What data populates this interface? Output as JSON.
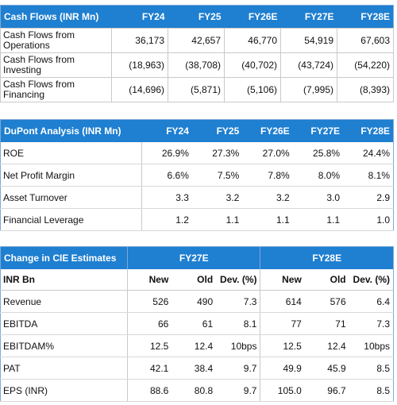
{
  "cash_flows": {
    "title": "Cash Flows (INR Mn)",
    "columns": [
      "FY24",
      "FY25",
      "FY26E",
      "FY27E",
      "FY28E"
    ],
    "rows": [
      {
        "label": "Cash Flows from Operations",
        "values": [
          "36,173",
          "42,657",
          "46,770",
          "54,919",
          "67,603"
        ]
      },
      {
        "label": "Cash Flows from Investing",
        "values": [
          "(18,963)",
          "(38,708)",
          "(40,702)",
          "(43,724)",
          "(54,220)"
        ]
      },
      {
        "label": "Cash Flows from Financing",
        "values": [
          "(14,696)",
          "(5,871)",
          "(5,106)",
          "(7,995)",
          "(8,393)"
        ]
      }
    ]
  },
  "dupont": {
    "title": "DuPont Analysis (INR Mn)",
    "columns": [
      "FY24",
      "FY25",
      "FY26E",
      "FY27E",
      "FY28E"
    ],
    "rows": [
      {
        "label": "ROE",
        "values": [
          "26.9%",
          "27.3%",
          "27.0%",
          "25.8%",
          "24.4%"
        ]
      },
      {
        "label": "Net Profit Margin",
        "values": [
          "6.6%",
          "7.5%",
          "7.8%",
          "8.0%",
          "8.1%"
        ]
      },
      {
        "label": "Asset Turnover",
        "values": [
          "3.3",
          "3.2",
          "3.2",
          "3.0",
          "2.9"
        ]
      },
      {
        "label": "Financial Leverage",
        "values": [
          "1.2",
          "1.1",
          "1.1",
          "1.1",
          "1.0"
        ]
      }
    ]
  },
  "estimates": {
    "title": "Change in CIE Estimates",
    "groups": [
      "FY27E",
      "FY28E"
    ],
    "sub_label": "INR Bn",
    "sub_columns": [
      "New",
      "Old",
      "Dev. (%)",
      "New",
      "Old",
      "Dev. (%)"
    ],
    "rows": [
      {
        "label": "Revenue",
        "values": [
          "526",
          "490",
          "7.3",
          "614",
          "576",
          "6.4"
        ]
      },
      {
        "label": "EBITDA",
        "values": [
          "66",
          "61",
          "8.1",
          "77",
          "71",
          "7.3"
        ]
      },
      {
        "label": "EBITDAM%",
        "values": [
          "12.5",
          "12.4",
          "10bps",
          "12.5",
          "12.4",
          "10bps"
        ]
      },
      {
        "label": "PAT",
        "values": [
          "42.1",
          "38.4",
          "9.7",
          "49.9",
          "45.9",
          "8.5"
        ]
      },
      {
        "label": "EPS (INR)",
        "values": [
          "88.6",
          "80.8",
          "9.7",
          "105.0",
          "96.7",
          "8.5"
        ]
      }
    ]
  }
}
